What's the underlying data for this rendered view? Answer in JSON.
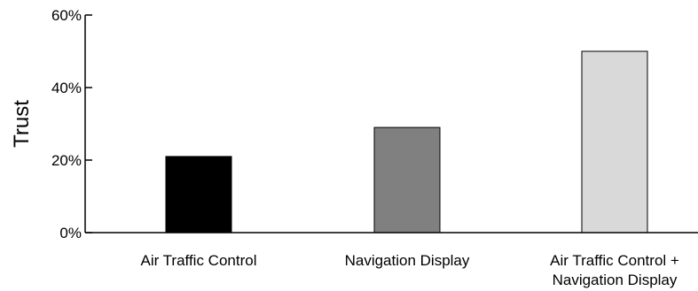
{
  "chart_data": {
    "type": "bar",
    "title": "",
    "xlabel": "",
    "ylabel": "Trust",
    "ylim": [
      0,
      60
    ],
    "y_ticks": [
      {
        "value": 0,
        "label": "0%"
      },
      {
        "value": 20,
        "label": "20%"
      },
      {
        "value": 40,
        "label": "40%"
      },
      {
        "value": 60,
        "label": "60%"
      }
    ],
    "categories": [
      [
        "Air Traffic Control"
      ],
      [
        "Navigation Display"
      ],
      [
        "Air Traffic Control +",
        "Navigation Display"
      ]
    ],
    "values": [
      21,
      29,
      50
    ],
    "colors": [
      "#000000",
      "#808080",
      "#d9d9d9"
    ],
    "grid": false,
    "legend": "none"
  }
}
